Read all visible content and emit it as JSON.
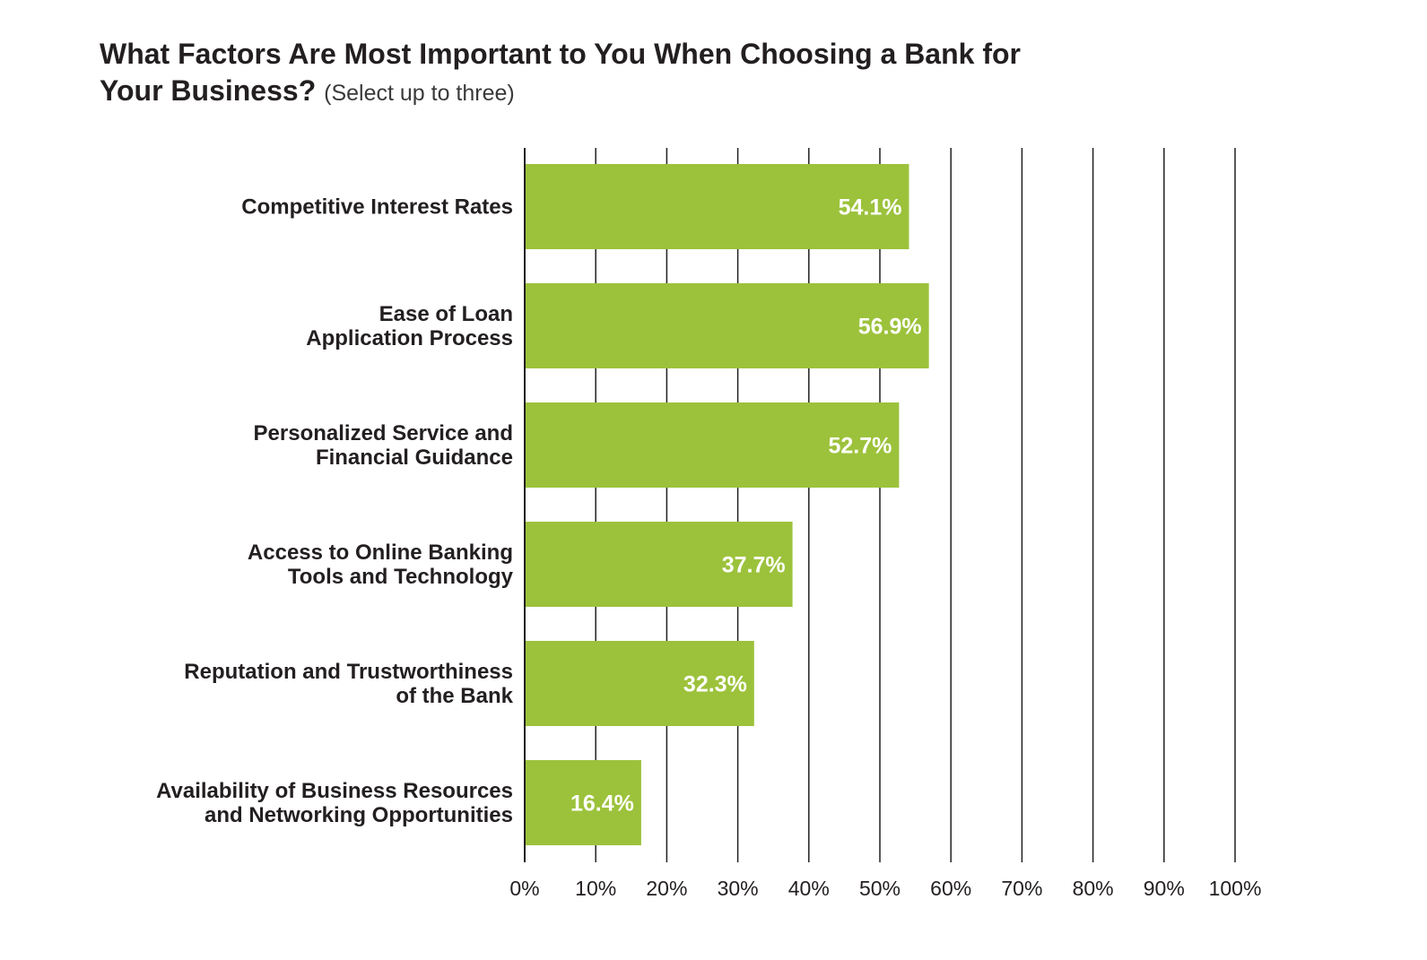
{
  "chart_data": {
    "type": "bar",
    "orientation": "horizontal",
    "title": "What Factors Are Most Important to You When Choosing a Bank for Your Business?",
    "subtitle": "(Select up to three)",
    "categories": [
      [
        "Competitive Interest Rates"
      ],
      [
        "Ease of Loan",
        "Application Process"
      ],
      [
        "Personalized Service and",
        "Financial Guidance"
      ],
      [
        "Access to Online Banking",
        "Tools and Technology"
      ],
      [
        "Reputation and Trustworthiness",
        "of the Bank"
      ],
      [
        "Availability of Business Resources",
        "and Networking Opportunities"
      ]
    ],
    "values": [
      54.1,
      56.9,
      52.7,
      37.7,
      32.3,
      16.4
    ],
    "value_labels": [
      "54.1%",
      "56.9%",
      "52.7%",
      "37.7%",
      "32.3%",
      "16.4%"
    ],
    "xlim": [
      0,
      100
    ],
    "x_ticks": [
      "0%",
      "10%",
      "20%",
      "30%",
      "40%",
      "50%",
      "60%",
      "70%",
      "80%",
      "90%",
      "100%"
    ],
    "xlabel": "",
    "ylabel": "",
    "grid": true,
    "legend": "none",
    "colors": {
      "bar": "#9cc23b",
      "grid": "#231f20",
      "value_text": "#ffffff"
    }
  }
}
